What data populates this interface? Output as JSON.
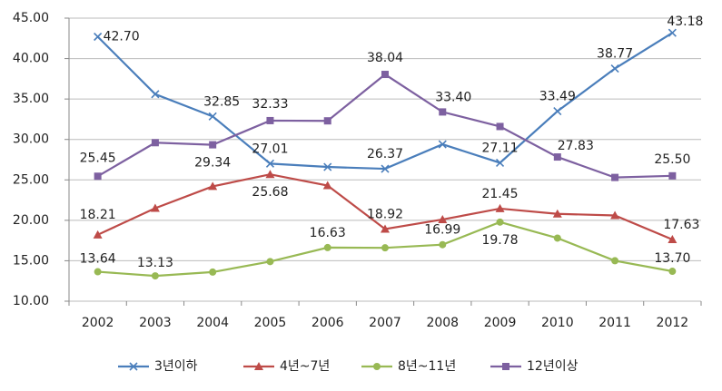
{
  "chart_data": {
    "type": "line",
    "categories": [
      "2002",
      "2003",
      "2004",
      "2005",
      "2006",
      "2007",
      "2008",
      "2009",
      "2010",
      "2011",
      "2012"
    ],
    "series": [
      {
        "name": "3년이하",
        "color": "#4a7ebb",
        "marker": "x",
        "values": [
          42.7,
          35.6,
          32.85,
          27.01,
          26.6,
          26.37,
          29.4,
          27.11,
          33.49,
          38.77,
          43.18
        ],
        "value_labels": [
          "42.70",
          null,
          "32.85",
          "27.01",
          null,
          "26.37",
          null,
          "27.11",
          "33.49",
          "38.77",
          "43.18"
        ]
      },
      {
        "name": "4년~7년",
        "color": "#be4b48",
        "marker": "triangle",
        "values": [
          18.21,
          21.5,
          24.2,
          25.68,
          24.3,
          18.92,
          20.1,
          21.45,
          20.8,
          20.6,
          17.63
        ],
        "value_labels": [
          "18.21",
          null,
          null,
          "25.68",
          null,
          "18.92",
          null,
          "21.45",
          null,
          null,
          "17.63"
        ]
      },
      {
        "name": "8년~11년",
        "color": "#98b954",
        "marker": "circle",
        "values": [
          13.64,
          13.13,
          13.6,
          14.9,
          16.63,
          16.6,
          16.99,
          19.78,
          17.8,
          15.0,
          13.7
        ],
        "value_labels": [
          "13.64",
          "13.13",
          null,
          null,
          "16.63",
          null,
          "16.99",
          "19.78",
          null,
          null,
          "13.70"
        ]
      },
      {
        "name": "12년이상",
        "color": "#7d60a0",
        "marker": "square",
        "values": [
          25.45,
          29.6,
          29.34,
          32.33,
          32.3,
          38.04,
          33.4,
          31.6,
          27.83,
          25.3,
          25.5
        ],
        "value_labels": [
          "25.45",
          null,
          "29.34",
          "32.33",
          null,
          "38.04",
          "33.40",
          null,
          "27.83",
          null,
          "25.50"
        ]
      }
    ],
    "ylim": [
      10,
      45
    ],
    "yticks": [
      {
        "value": 10,
        "label": "10.00"
      },
      {
        "value": 15,
        "label": "15.00"
      },
      {
        "value": 20,
        "label": "20.00"
      },
      {
        "value": 25,
        "label": "25.00"
      },
      {
        "value": 30,
        "label": "30.00"
      },
      {
        "value": 35,
        "label": "35.00"
      },
      {
        "value": 40,
        "label": "40.00"
      },
      {
        "value": 45,
        "label": "45.00"
      }
    ],
    "grid": true,
    "legend": "bottom"
  }
}
